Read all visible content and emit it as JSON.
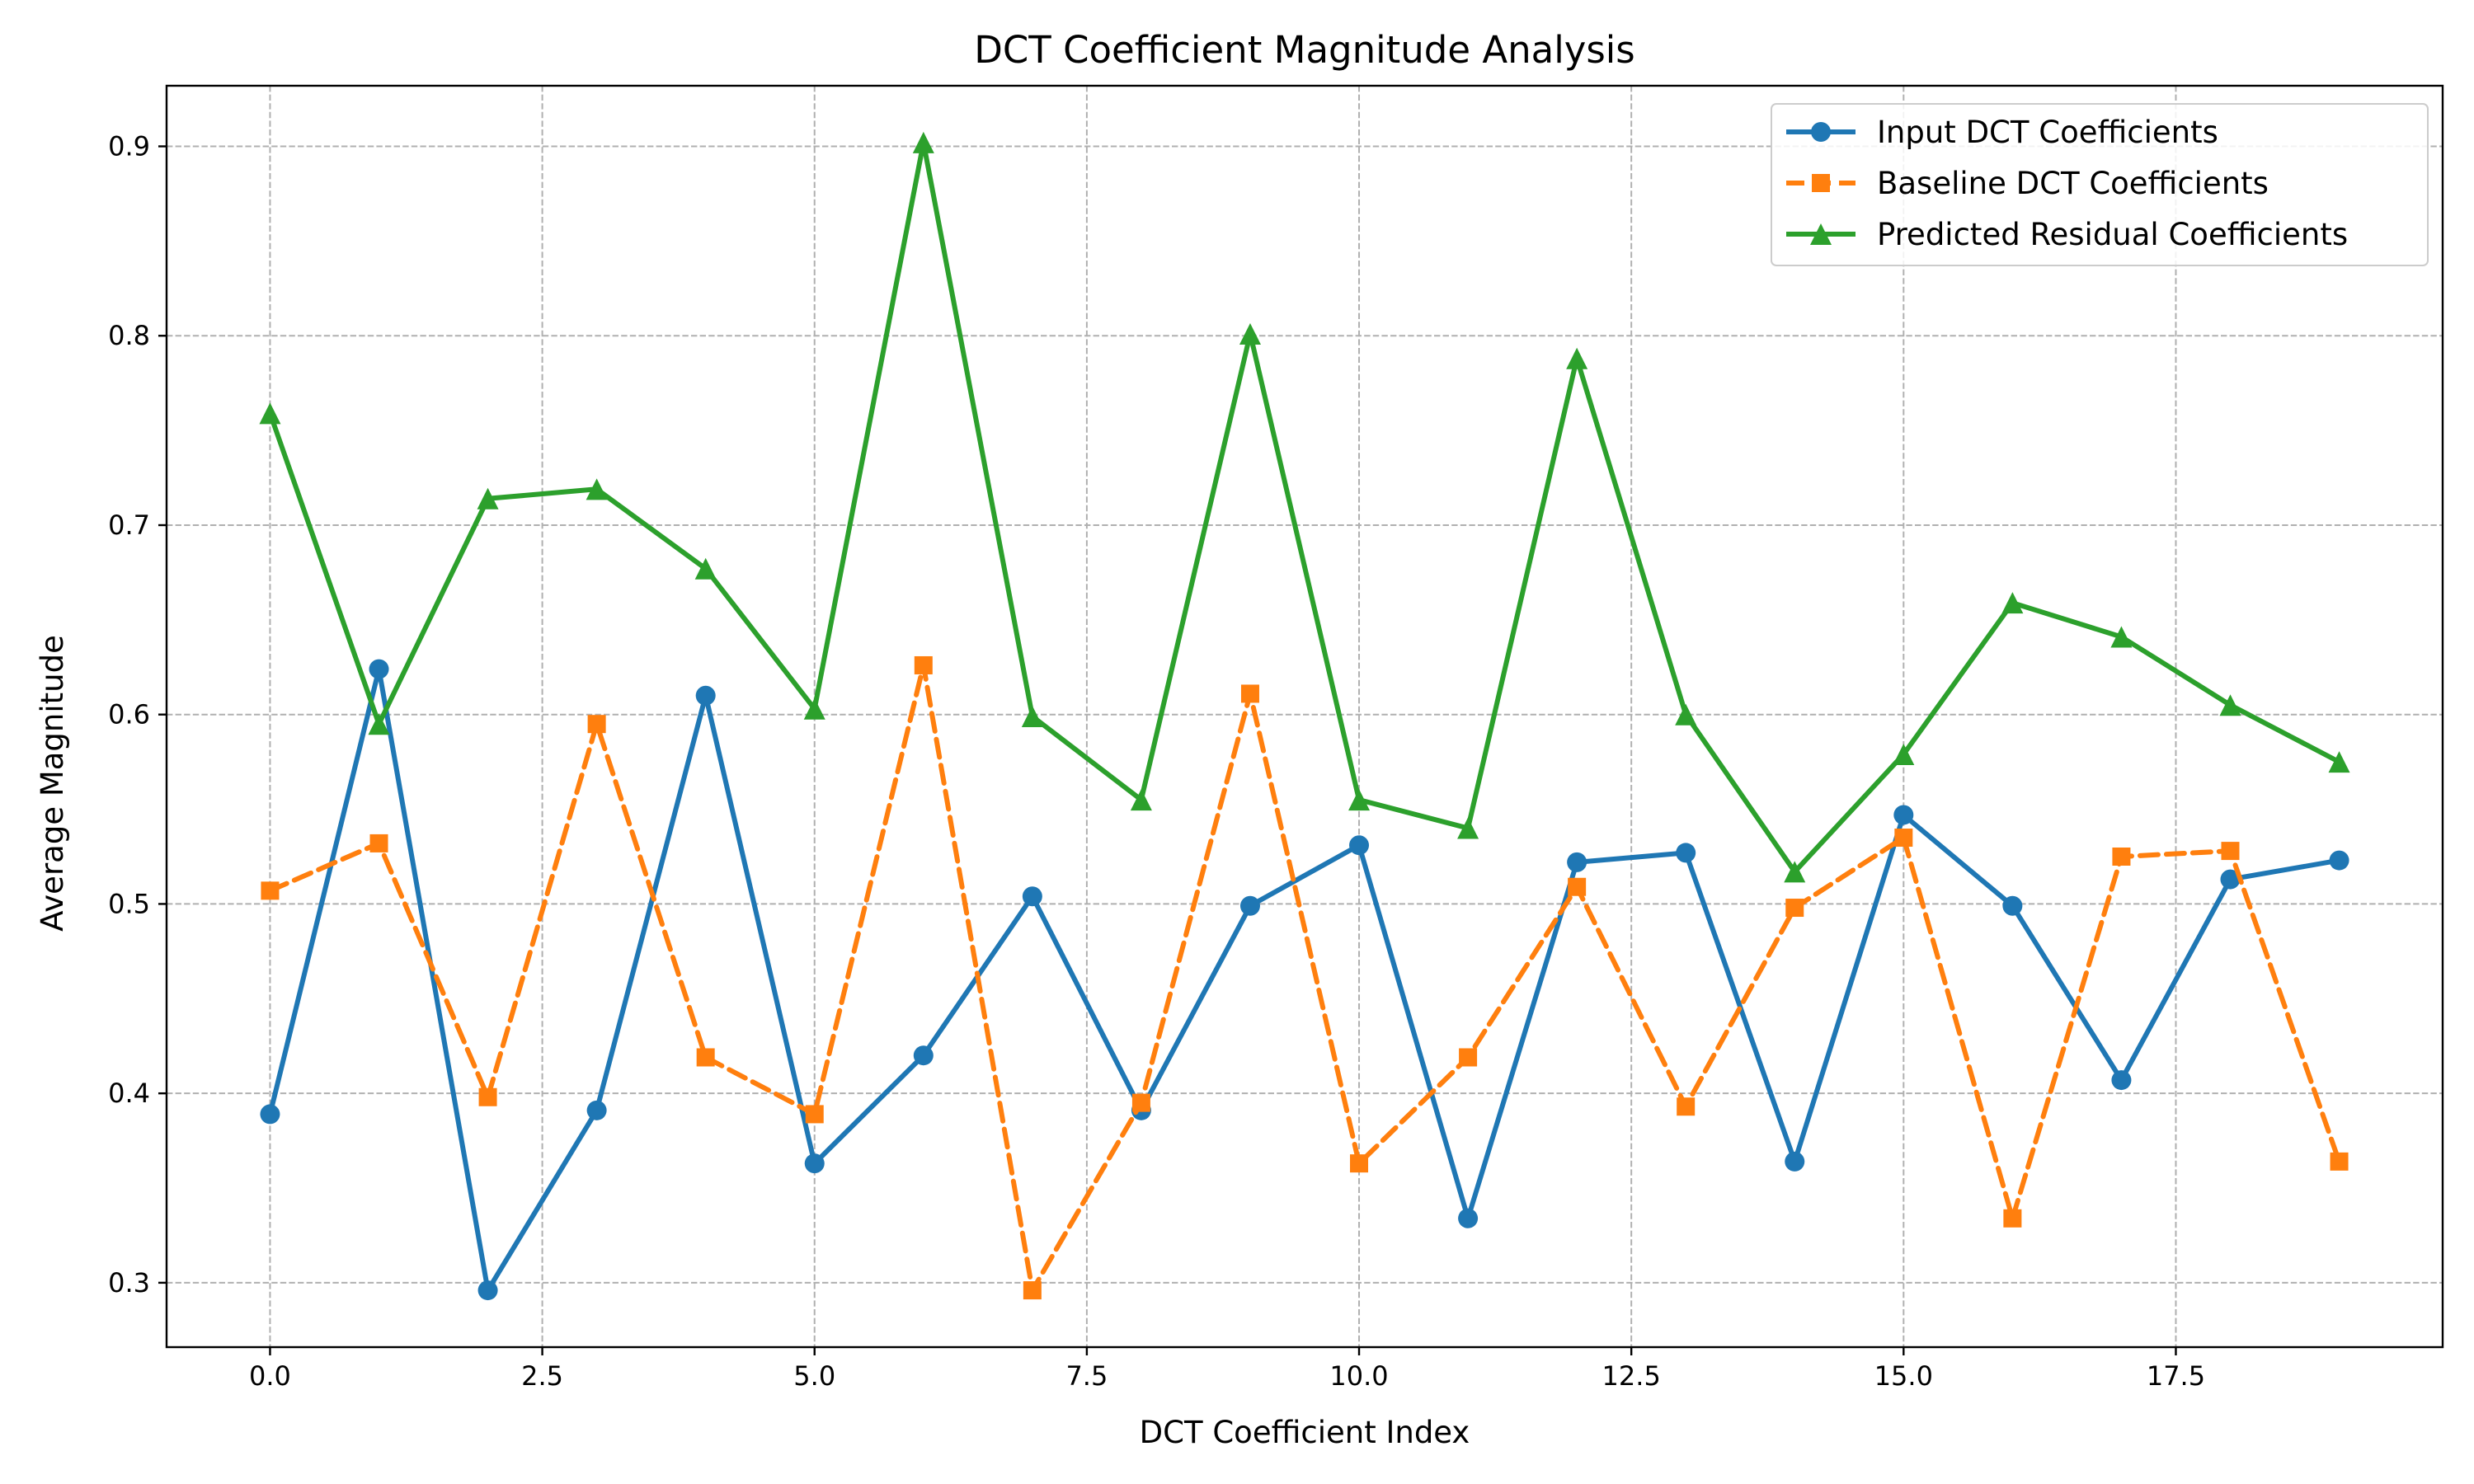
{
  "chart_data": {
    "type": "line",
    "title": "DCT Coefficient Magnitude Analysis",
    "xlabel": "DCT Coefficient Index",
    "ylabel": "Average Magnitude",
    "xlim": [
      -0.95,
      19.95
    ],
    "ylim": [
      0.266,
      0.932
    ],
    "xticks": [
      0.0,
      2.5,
      5.0,
      7.5,
      10.0,
      12.5,
      15.0,
      17.5
    ],
    "xtick_labels": [
      "0.0",
      "2.5",
      "5.0",
      "7.5",
      "10.0",
      "12.5",
      "15.0",
      "17.5"
    ],
    "yticks": [
      0.3,
      0.4,
      0.5,
      0.6,
      0.7,
      0.8,
      0.9
    ],
    "ytick_labels": [
      "0.3",
      "0.4",
      "0.5",
      "0.6",
      "0.7",
      "0.8",
      "0.9"
    ],
    "grid": true,
    "legend_position": "top-right",
    "x": [
      0,
      1,
      2,
      3,
      4,
      5,
      6,
      7,
      8,
      9,
      10,
      11,
      12,
      13,
      14,
      15,
      16,
      17,
      18,
      19
    ],
    "series": [
      {
        "name": "Input DCT Coefficients",
        "color": "#1f77b4",
        "marker": "circle",
        "linestyle": "solid",
        "values": [
          0.389,
          0.624,
          0.296,
          0.391,
          0.61,
          0.363,
          0.42,
          0.504,
          0.391,
          0.499,
          0.531,
          0.334,
          0.522,
          0.527,
          0.364,
          0.547,
          0.499,
          0.407,
          0.513,
          0.523
        ]
      },
      {
        "name": "Baseline DCT Coefficients",
        "color": "#ff7f0e",
        "marker": "square",
        "linestyle": "dashed",
        "values": [
          0.507,
          0.532,
          0.398,
          0.595,
          0.419,
          0.389,
          0.626,
          0.296,
          0.395,
          0.611,
          0.363,
          0.419,
          0.509,
          0.393,
          0.498,
          0.535,
          0.334,
          0.525,
          0.528,
          0.364
        ]
      },
      {
        "name": "Predicted Residual Coefficients",
        "color": "#2ca02c",
        "marker": "triangle",
        "linestyle": "solid",
        "values": [
          0.759,
          0.595,
          0.714,
          0.719,
          0.677,
          0.603,
          0.902,
          0.599,
          0.555,
          0.801,
          0.555,
          0.54,
          0.788,
          0.6,
          0.517,
          0.579,
          0.659,
          0.641,
          0.605,
          0.575
        ]
      }
    ]
  }
}
